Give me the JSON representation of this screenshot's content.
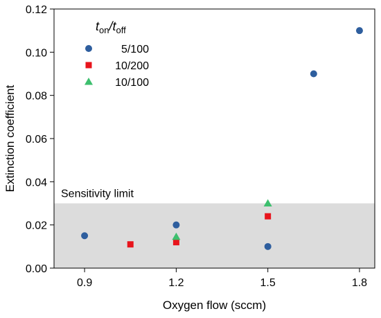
{
  "chart_data": {
    "type": "scatter",
    "xlabel": "Oxygen flow (sccm)",
    "ylabel": "Extinction coefficient",
    "xlim": [
      0.8,
      1.85
    ],
    "ylim": [
      0.0,
      0.12
    ],
    "xticks": [
      0.9,
      1.2,
      1.5,
      1.8
    ],
    "xtick_labels": [
      "0.9",
      "1.2",
      "1.5",
      "1.8"
    ],
    "yticks": [
      0.0,
      0.02,
      0.04,
      0.06,
      0.08,
      0.1,
      0.12
    ],
    "ytick_labels": [
      "0.00",
      "0.02",
      "0.04",
      "0.06",
      "0.08",
      "0.10",
      "0.12"
    ],
    "grid": false,
    "legend": {
      "position": "top-left",
      "title_parts": [
        {
          "text": "t",
          "sub": "on"
        },
        {
          "text": "/t",
          "sub": "off"
        }
      ]
    },
    "series": [
      {
        "name": "5/100",
        "marker": "circle",
        "color": "#2e5e9e",
        "points": [
          [
            0.9,
            0.015
          ],
          [
            1.2,
            0.02
          ],
          [
            1.5,
            0.01
          ],
          [
            1.65,
            0.09
          ],
          [
            1.8,
            0.11
          ]
        ]
      },
      {
        "name": "10/200",
        "marker": "square",
        "color": "#e8141c",
        "points": [
          [
            1.05,
            0.011
          ],
          [
            1.2,
            0.012
          ],
          [
            1.5,
            0.024
          ]
        ]
      },
      {
        "name": "10/100",
        "marker": "triangle",
        "color": "#3dbf6e",
        "points": [
          [
            1.2,
            0.0145
          ],
          [
            1.5,
            0.03
          ]
        ]
      }
    ],
    "shaded_region": {
      "label": "Sensitivity limit",
      "y0": 0.0,
      "y1": 0.03,
      "color": "#dcdcdc"
    }
  }
}
